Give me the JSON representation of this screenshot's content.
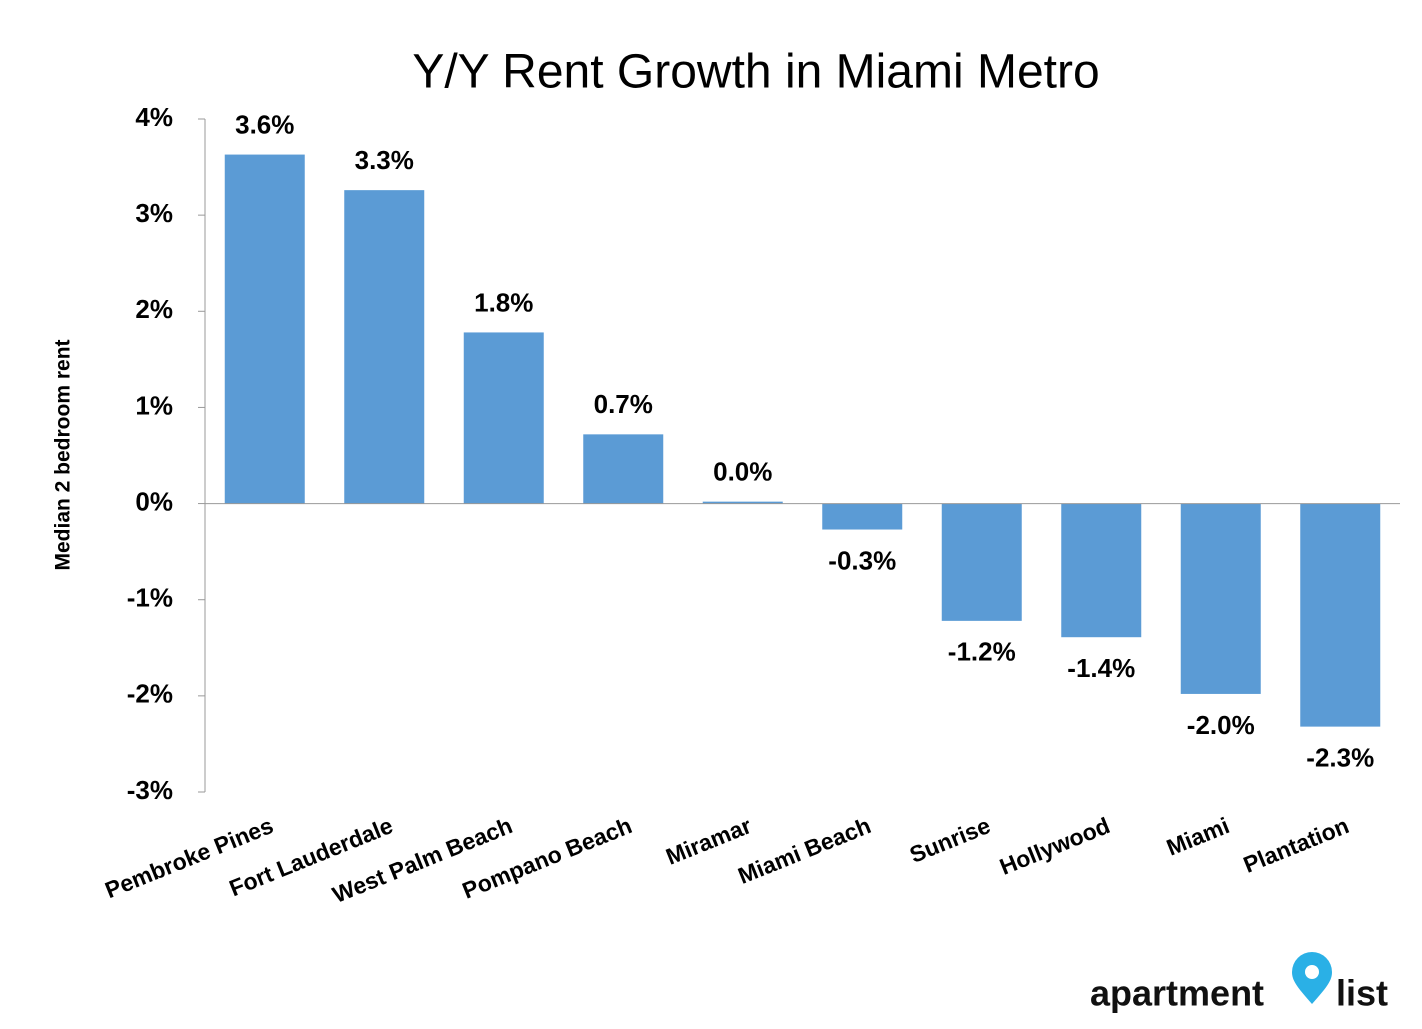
{
  "chart_data": {
    "type": "bar",
    "title": "Y/Y Rent Growth in Miami Metro",
    "y_label": "Median 2 bedroom rent",
    "categories": [
      "Pembroke Pines",
      "Fort Lauderdale",
      "West Palm Beach",
      "Pompano Beach",
      "Miramar",
      "Miami Beach",
      "Sunrise",
      "Hollywood",
      "Miami",
      "Plantation"
    ],
    "values": [
      3.63,
      3.26,
      1.78,
      0.72,
      0.02,
      -0.27,
      -1.22,
      -1.39,
      -1.98,
      -2.32
    ],
    "value_labels": [
      "3.6%",
      "3.3%",
      "1.8%",
      "0.7%",
      "0.0%",
      "-0.3%",
      "-1.2%",
      "-1.4%",
      "-2.0%",
      "-2.3%"
    ],
    "color": "#5b9bd5",
    "ylim": [
      -3,
      4
    ],
    "yticks": [
      {
        "value": -3,
        "label": "-3%"
      },
      {
        "value": -2,
        "label": "-2%"
      },
      {
        "value": -1,
        "label": "-1%"
      },
      {
        "value": 0,
        "label": "0%"
      },
      {
        "value": 1,
        "label": "1%"
      },
      {
        "value": 2,
        "label": "2%"
      },
      {
        "value": 3,
        "label": "3%"
      },
      {
        "value": 4,
        "label": "4%"
      }
    ],
    "grid": false
  },
  "logo": {
    "left": "apartment",
    "right": "list"
  }
}
